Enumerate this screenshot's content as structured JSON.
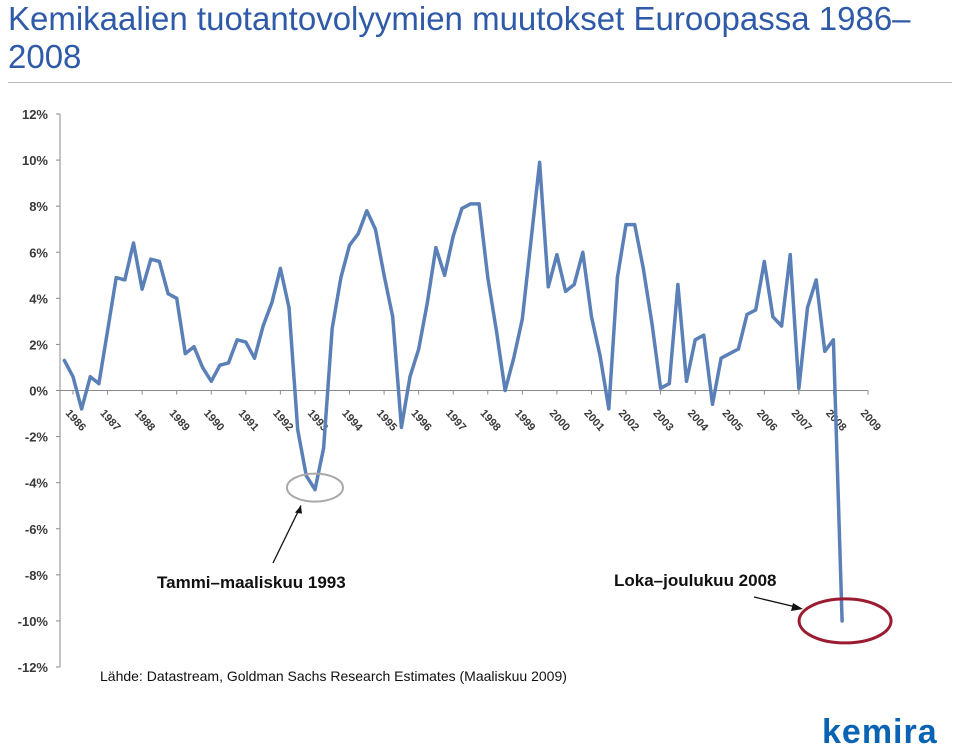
{
  "slide": {
    "title": "Kemikaalien tuotantovolyymien muutokset Euroopassa 1986–2008",
    "source": "Lähde: Datastream, Goldman Sachs Research Estimates (Maaliskuu 2009)",
    "logo_text": "kemira"
  },
  "chart_data": {
    "type": "line",
    "title": "",
    "xlabel": "",
    "ylabel": "",
    "ylim": [
      -12,
      12
    ],
    "yticks": [
      12,
      10,
      8,
      6,
      4,
      2,
      0,
      -2,
      -4,
      -6,
      -8,
      -10,
      -12
    ],
    "ytick_labels": [
      "12%",
      "10%",
      "8%",
      "6%",
      "4%",
      "2%",
      "0%",
      "-2%",
      "-4%",
      "-6%",
      "-8%",
      "-10%",
      "-12%"
    ],
    "x_range": [
      1986,
      2009
    ],
    "xticks": [
      1986,
      1987,
      1988,
      1989,
      1990,
      1991,
      1992,
      1993,
      1994,
      1995,
      1996,
      1997,
      1998,
      1999,
      2000,
      2001,
      2002,
      2003,
      2004,
      2005,
      2006,
      2007,
      2008,
      2009
    ],
    "grid": false,
    "color": "#5b80b8",
    "series": [
      {
        "name": "",
        "x": [
          1985.75,
          1986.0,
          1986.25,
          1986.5,
          1986.75,
          1987.0,
          1987.25,
          1987.5,
          1987.75,
          1988.0,
          1988.25,
          1988.5,
          1988.75,
          1989.0,
          1989.25,
          1989.5,
          1989.75,
          1990.0,
          1990.25,
          1990.5,
          1990.75,
          1991.0,
          1991.25,
          1991.5,
          1991.75,
          1992.0,
          1992.25,
          1992.5,
          1992.75,
          1993.0,
          1993.25,
          1993.5,
          1993.75,
          1994.0,
          1994.25,
          1994.5,
          1994.75,
          1995.0,
          1995.25,
          1995.5,
          1995.75,
          1996.0,
          1996.25,
          1996.5,
          1996.75,
          1997.0,
          1997.25,
          1997.5,
          1997.75,
          1998.0,
          1998.25,
          1998.5,
          1998.75,
          1999.0,
          1999.25,
          1999.5,
          1999.75,
          2000.0,
          2000.25,
          2000.5,
          2000.75,
          2001.0,
          2001.25,
          2001.5,
          2001.75,
          2002.0,
          2002.25,
          2002.5,
          2002.75,
          2003.0,
          2003.25,
          2003.5,
          2003.75,
          2004.0,
          2004.25,
          2004.5,
          2004.75,
          2005.0,
          2005.25,
          2005.5,
          2005.75,
          2006.0,
          2006.25,
          2006.5,
          2006.75,
          2007.0,
          2007.25,
          2007.5,
          2007.75,
          2008.0,
          2008.25
        ],
        "values": [
          1.3,
          0.6,
          -0.8,
          0.6,
          0.3,
          2.6,
          4.9,
          4.8,
          6.4,
          4.4,
          5.7,
          5.6,
          4.2,
          4.0,
          1.6,
          1.9,
          1.0,
          0.4,
          1.1,
          1.2,
          2.2,
          2.1,
          1.4,
          2.8,
          3.8,
          5.3,
          3.6,
          -1.7,
          -3.7,
          -4.3,
          -2.5,
          2.7,
          4.9,
          6.3,
          6.8,
          7.8,
          7.0,
          5.0,
          3.2,
          -1.6,
          0.6,
          1.8,
          3.8,
          6.2,
          5.0,
          6.7,
          7.9,
          8.1,
          8.1,
          4.9,
          2.6,
          0.0,
          1.4,
          3.1,
          6.5,
          9.9,
          4.5,
          5.9,
          4.3,
          4.6,
          6.0,
          3.2,
          1.5,
          -0.8,
          4.9,
          7.2,
          7.2,
          5.3,
          2.9,
          0.1,
          0.3,
          4.6,
          0.4,
          2.2,
          2.4,
          -0.6,
          1.4,
          1.6,
          1.8,
          3.3,
          3.5,
          5.6,
          3.2,
          2.8,
          5.9,
          0.1,
          3.6,
          4.8,
          1.7,
          2.2,
          -10.0
        ]
      }
    ],
    "annotations": [
      {
        "text": "Tammi–maaliskuu 1993",
        "target_x": 1993.0,
        "target_y": -4.3
      },
      {
        "text": "Loka–joulukuu 2008",
        "target_x": 2008.25,
        "target_y": -10.0
      }
    ],
    "highlight_color": "#9b1b30"
  }
}
